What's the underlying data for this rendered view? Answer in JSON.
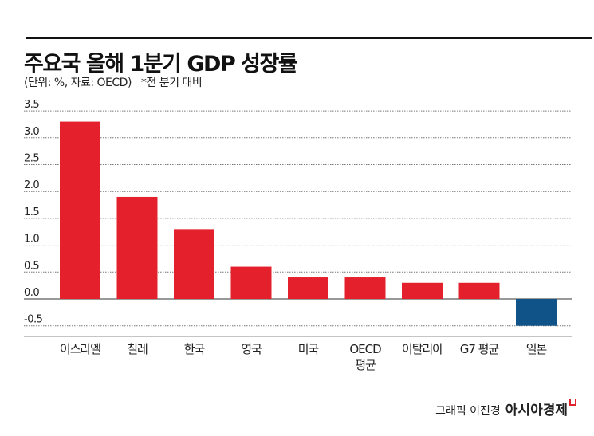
{
  "chart_data": {
    "type": "bar",
    "title": "주요국 올해 1분기 GDP 성장률",
    "subtitle": "(단위: %, 자료: OECD)",
    "note": "*전 분기 대비",
    "categories": [
      "이스라엘",
      "칠레",
      "한국",
      "영국",
      "미국",
      "OECD 평균",
      "이탈리아",
      "G7 평균",
      "일본"
    ],
    "values": [
      3.3,
      1.9,
      1.3,
      0.6,
      0.4,
      0.4,
      0.3,
      0.3,
      -0.5
    ],
    "yticks": [
      "3.5",
      "3.0",
      "2.5",
      "2.0",
      "1.5",
      "1.0",
      "0.5",
      "0.0",
      "-0.5"
    ],
    "ylim": [
      -0.5,
      3.5
    ],
    "grid": true,
    "colors": {
      "positive": "#e3202b",
      "negative": "#0f5389"
    }
  },
  "credit": {
    "author": "그래픽 이진경",
    "brand": "아시아경제"
  }
}
